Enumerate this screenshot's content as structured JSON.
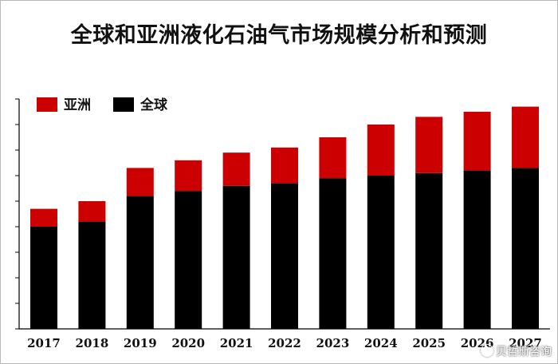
{
  "chart_data": {
    "type": "bar",
    "stacked": true,
    "title": "全球和亚洲液化石油气市场规模分析和预测",
    "categories": [
      "2017",
      "2018",
      "2019",
      "2020",
      "2021",
      "2022",
      "2023",
      "2024",
      "2025",
      "2026",
      "2027"
    ],
    "series": [
      {
        "name": "全球",
        "color": "#000000",
        "values": [
          40,
          42,
          52,
          54,
          56,
          57,
          59,
          60,
          61,
          62,
          63
        ]
      },
      {
        "name": "亚洲",
        "color": "#cc0000",
        "values": [
          7,
          8,
          11,
          12,
          13,
          14,
          16,
          20,
          22,
          23,
          24
        ]
      }
    ],
    "legend": [
      {
        "name": "亚洲",
        "color": "#cc0000"
      },
      {
        "name": "全球",
        "color": "#000000"
      }
    ],
    "legend_position": "top-left",
    "ylim": [
      0,
      90
    ],
    "ytick_step": 10,
    "ytick_labels_shown": false,
    "grid": false,
    "xlabel": "",
    "ylabel": ""
  },
  "watermark": {
    "text": "贝哲斯咨询"
  }
}
